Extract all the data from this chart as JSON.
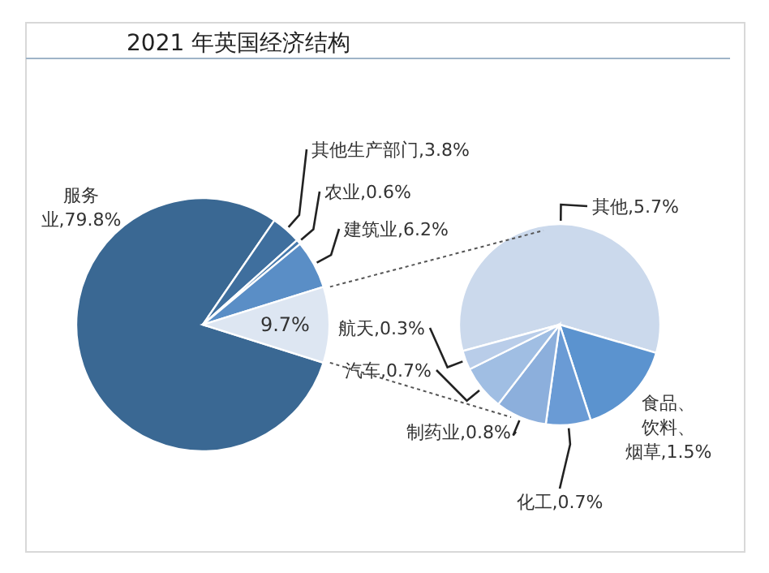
{
  "chart_data": [
    {
      "type": "pie",
      "title": "2021 年英国经济结构",
      "categories": [
        "服务业",
        "其他生产部门",
        "农业",
        "建筑业",
        null
      ],
      "values": [
        79.8,
        3.8,
        0.6,
        6.2,
        9.7
      ],
      "value_labels": [
        "79.8%",
        "3.8%",
        "0.6%",
        "6.2%",
        "9.7%"
      ],
      "colors": [
        "#3a6893",
        "#3f6f9e",
        "#4679ac",
        "#5a8ec6",
        "#dde6f2"
      ]
    },
    {
      "type": "pie",
      "categories": [
        "其他",
        "食品、饮料、烟草",
        "化工",
        "制药业",
        "汽车",
        "航天"
      ],
      "values": [
        5.7,
        1.5,
        0.7,
        0.8,
        0.7,
        0.3
      ],
      "value_labels": [
        "5.7%",
        "1.5%",
        "0.7%",
        "0.8%",
        "0.7%",
        "0.3%"
      ],
      "colors": [
        "#cbd9ec",
        "#5b93cf",
        "#6a9bd5",
        "#8cafdc",
        "#a0bee3",
        "#b9cde9"
      ]
    }
  ]
}
